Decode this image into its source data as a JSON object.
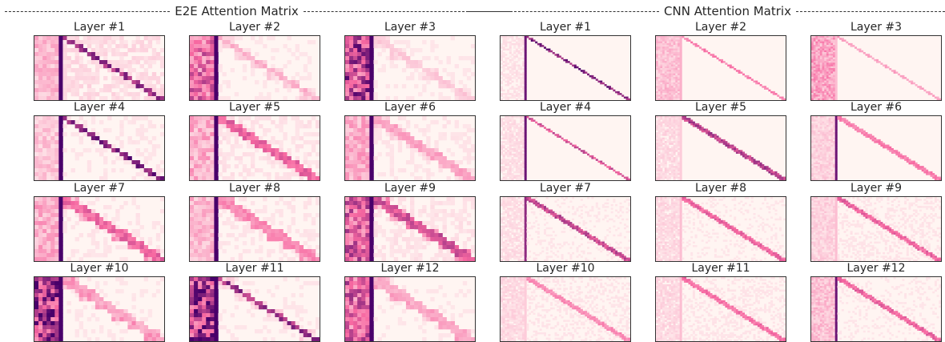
{
  "groups": [
    {
      "title": "E2E Attention Matrix"
    },
    {
      "title": "CNN Attention Matrix"
    }
  ],
  "panels": [
    {
      "group": 0,
      "title": "Layer #1",
      "prefix_intensity": 0.25,
      "col_strength": 1.0,
      "diag": 0.9,
      "diag_width": 1,
      "blocks": 0.05,
      "noise": 0.12
    },
    {
      "group": 0,
      "title": "Layer #2",
      "prefix_intensity": 0.55,
      "col_strength": 1.0,
      "diag": 0.3,
      "diag_width": 1,
      "blocks": 0.15,
      "noise": 0.05
    },
    {
      "group": 0,
      "title": "Layer #3",
      "prefix_intensity": 0.75,
      "col_strength": 1.0,
      "diag": 0.2,
      "diag_width": 1,
      "blocks": 0.15,
      "noise": 0.05
    },
    {
      "group": 1,
      "title": "Layer #1",
      "prefix_intensity": 0.08,
      "col_strength": 0.9,
      "diag": 1.0,
      "diag_width": 1,
      "blocks": 0.0,
      "noise": 0.03
    },
    {
      "group": 1,
      "title": "Layer #2",
      "prefix_intensity": 0.22,
      "col_strength": 0.25,
      "diag": 0.5,
      "diag_width": 1,
      "blocks": 0.0,
      "noise": 0.03
    },
    {
      "group": 1,
      "title": "Layer #3",
      "prefix_intensity": 0.35,
      "col_strength": 0.2,
      "diag": 0.35,
      "diag_width": 1,
      "blocks": 0.0,
      "noise": 0.03
    },
    {
      "group": 0,
      "title": "Layer #4",
      "prefix_intensity": 0.2,
      "col_strength": 1.0,
      "diag": 1.0,
      "diag_width": 1,
      "blocks": 0.0,
      "noise": 0.06
    },
    {
      "group": 0,
      "title": "Layer #5",
      "prefix_intensity": 0.3,
      "col_strength": 1.0,
      "diag": 0.6,
      "diag_width": 2,
      "blocks": 0.1,
      "noise": 0.08
    },
    {
      "group": 0,
      "title": "Layer #6",
      "prefix_intensity": 0.3,
      "col_strength": 1.0,
      "diag": 0.35,
      "diag_width": 2,
      "blocks": 0.15,
      "noise": 0.06
    },
    {
      "group": 1,
      "title": "Layer #4",
      "prefix_intensity": 0.1,
      "col_strength": 0.9,
      "diag": 0.7,
      "diag_width": 1,
      "blocks": 0.0,
      "noise": 0.02
    },
    {
      "group": 1,
      "title": "Layer #5",
      "prefix_intensity": 0.12,
      "col_strength": 0.15,
      "diag": 0.8,
      "diag_width": 2,
      "blocks": 0.0,
      "noise": 0.04
    },
    {
      "group": 1,
      "title": "Layer #6",
      "prefix_intensity": 0.15,
      "col_strength": 0.9,
      "diag": 0.5,
      "diag_width": 2,
      "blocks": 0.0,
      "noise": 0.03
    },
    {
      "group": 0,
      "title": "Layer #7",
      "prefix_intensity": 0.3,
      "col_strength": 1.0,
      "diag": 0.6,
      "diag_width": 2,
      "blocks": 0.35,
      "noise": 0.06
    },
    {
      "group": 0,
      "title": "Layer #8",
      "prefix_intensity": 0.25,
      "col_strength": 1.0,
      "diag": 0.45,
      "diag_width": 2,
      "blocks": 0.35,
      "noise": 0.06
    },
    {
      "group": 0,
      "title": "Layer #9",
      "prefix_intensity": 0.6,
      "col_strength": 1.0,
      "diag": 0.7,
      "diag_width": 2,
      "blocks": 0.4,
      "noise": 0.08
    },
    {
      "group": 1,
      "title": "Layer #7",
      "prefix_intensity": 0.1,
      "col_strength": 0.8,
      "diag": 0.75,
      "diag_width": 2,
      "blocks": 0.0,
      "noise": 0.05
    },
    {
      "group": 1,
      "title": "Layer #8",
      "prefix_intensity": 0.12,
      "col_strength": 0.2,
      "diag": 0.6,
      "diag_width": 2,
      "blocks": 0.0,
      "noise": 0.05
    },
    {
      "group": 1,
      "title": "Layer #9",
      "prefix_intensity": 0.15,
      "col_strength": 0.2,
      "diag": 0.6,
      "diag_width": 2,
      "blocks": 0.0,
      "noise": 0.06
    },
    {
      "group": 0,
      "title": "Layer #10",
      "prefix_intensity": 0.85,
      "col_strength": 1.0,
      "diag": 0.3,
      "diag_width": 2,
      "blocks": 0.35,
      "noise": 0.05
    },
    {
      "group": 0,
      "title": "Layer #11",
      "prefix_intensity": 0.85,
      "col_strength": 1.0,
      "diag": 0.9,
      "diag_width": 1,
      "blocks": 0.15,
      "noise": 0.05
    },
    {
      "group": 0,
      "title": "Layer #12",
      "prefix_intensity": 0.6,
      "col_strength": 1.0,
      "diag": 0.3,
      "diag_width": 2,
      "blocks": 0.3,
      "noise": 0.05
    },
    {
      "group": 1,
      "title": "Layer #10",
      "prefix_intensity": 0.12,
      "col_strength": 0.15,
      "diag": 0.45,
      "diag_width": 2,
      "blocks": 0.0,
      "noise": 0.06
    },
    {
      "group": 1,
      "title": "Layer #11",
      "prefix_intensity": 0.12,
      "col_strength": 0.2,
      "diag": 0.55,
      "diag_width": 2,
      "blocks": 0.0,
      "noise": 0.06
    },
    {
      "group": 1,
      "title": "Layer #12",
      "prefix_intensity": 0.22,
      "col_strength": 0.9,
      "diag": 0.6,
      "diag_width": 2,
      "blocks": 0.0,
      "noise": 0.05
    }
  ],
  "chart_data": {
    "type": "heatmap",
    "colormap": "RdPu",
    "colors": {
      "low": "#fff7f3",
      "mid": "#f768a1",
      "high": "#49006a"
    },
    "grid": false
  }
}
